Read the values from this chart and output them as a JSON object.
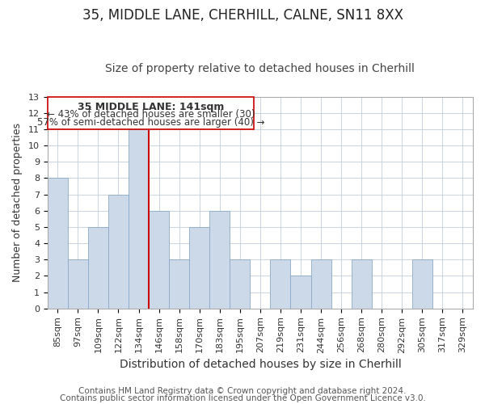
{
  "title": "35, MIDDLE LANE, CHERHILL, CALNE, SN11 8XX",
  "subtitle": "Size of property relative to detached houses in Cherhill",
  "xlabel": "Distribution of detached houses by size in Cherhill",
  "ylabel": "Number of detached properties",
  "bar_labels": [
    "85sqm",
    "97sqm",
    "109sqm",
    "122sqm",
    "134sqm",
    "146sqm",
    "158sqm",
    "170sqm",
    "183sqm",
    "195sqm",
    "207sqm",
    "219sqm",
    "231sqm",
    "244sqm",
    "256sqm",
    "268sqm",
    "280sqm",
    "292sqm",
    "305sqm",
    "317sqm",
    "329sqm"
  ],
  "bar_values": [
    8,
    3,
    5,
    7,
    11,
    6,
    3,
    5,
    6,
    3,
    0,
    3,
    2,
    3,
    0,
    3,
    0,
    0,
    3,
    0,
    0
  ],
  "bar_color": "#ccd9e8",
  "bar_edge_color": "#8aaac8",
  "vline_x_index": 5,
  "vline_color": "#cc0000",
  "annotation_title": "35 MIDDLE LANE: 141sqm",
  "annotation_line1": "← 43% of detached houses are smaller (30)",
  "annotation_line2": "57% of semi-detached houses are larger (40) →",
  "ylim": [
    0,
    13
  ],
  "yticks": [
    0,
    1,
    2,
    3,
    4,
    5,
    6,
    7,
    8,
    9,
    10,
    11,
    12,
    13
  ],
  "footer1": "Contains HM Land Registry data © Crown copyright and database right 2024.",
  "footer2": "Contains public sector information licensed under the Open Government Licence v3.0.",
  "background_color": "#ffffff",
  "grid_color": "#c8d4e0",
  "title_fontsize": 12,
  "subtitle_fontsize": 10,
  "xlabel_fontsize": 10,
  "ylabel_fontsize": 9,
  "tick_fontsize": 8,
  "annot_fontsize_title": 9,
  "annot_fontsize_body": 8.5,
  "footer_fontsize": 7.5
}
